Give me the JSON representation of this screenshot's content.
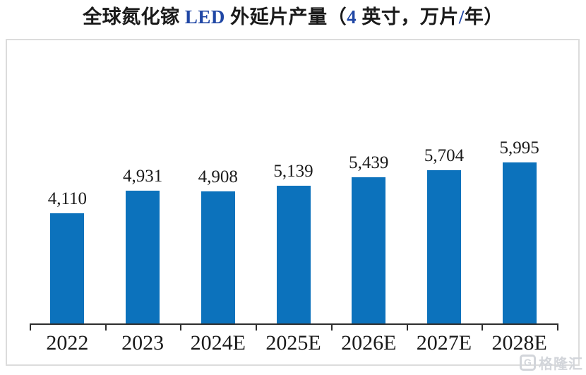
{
  "title": {
    "full_text": "全球氮化镓 LED 外延片产量（4 英寸，万片/年）",
    "segments": [
      {
        "text": "全球氮化镓 ",
        "color": "#1a1a1a"
      },
      {
        "text": "LED",
        "color": "#2047a5"
      },
      {
        "text": " 外延片产量（",
        "color": "#1a1a1a"
      },
      {
        "text": "4",
        "color": "#2047a5"
      },
      {
        "text": " 英寸，万片",
        "color": "#1a1a1a"
      },
      {
        "text": "/",
        "color": "#2047a5"
      },
      {
        "text": "年）",
        "color": "#1a1a1a"
      }
    ]
  },
  "chart_data": {
    "type": "bar",
    "title": "全球氮化镓 LED 外延片产量（4 英寸，万片/年）",
    "categories": [
      "2022",
      "2023",
      "2024E",
      "2025E",
      "2026E",
      "2027E",
      "2028E"
    ],
    "values": [
      4110,
      4931,
      4908,
      5139,
      5439,
      5704,
      5995
    ],
    "value_labels": [
      "4,110",
      "4,931",
      "4,908",
      "5,139",
      "5,439",
      "5,704",
      "5,995"
    ],
    "xlabel": "",
    "ylabel": "",
    "ylim": [
      0,
      6300
    ],
    "grid": false,
    "legend": false,
    "bar_color": "#0c72bc",
    "axis_color": "#2e2e2e",
    "border_color": "#dcdcdc"
  },
  "watermark": {
    "logo": "G",
    "text": "格隆汇"
  }
}
